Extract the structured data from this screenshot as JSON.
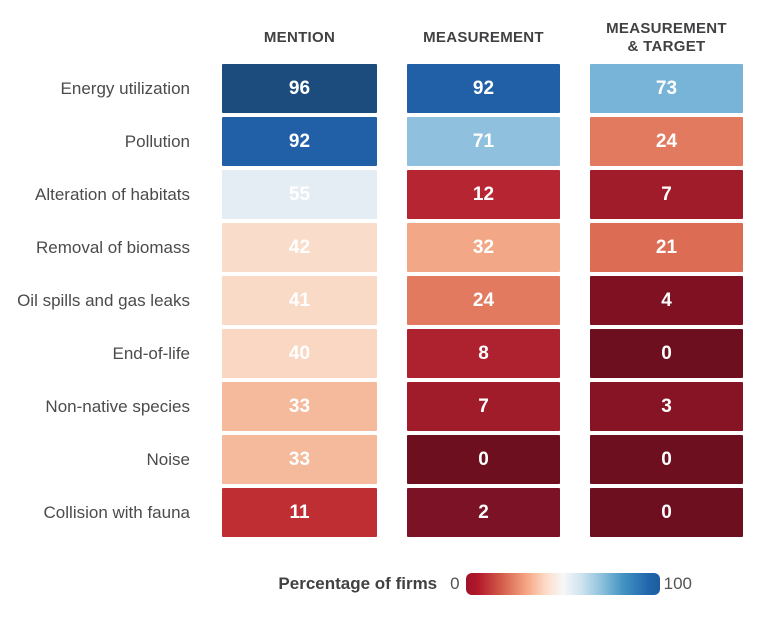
{
  "chart_data": {
    "type": "heatmap",
    "title": "",
    "columns": [
      "MENTION",
      "MEASUREMENT",
      "MEASUREMENT\n& TARGET"
    ],
    "rows": [
      {
        "label": "Energy utilization",
        "values": [
          96,
          92,
          73
        ],
        "colors": [
          "#1b4c7d",
          "#2160a6",
          "#77b4d8"
        ]
      },
      {
        "label": "Pollution",
        "values": [
          92,
          71,
          24
        ],
        "colors": [
          "#2160a6",
          "#8fc1de",
          "#e27a5f"
        ]
      },
      {
        "label": "Alteration of habitats",
        "values": [
          55,
          12,
          7
        ],
        "colors": [
          "#e4edf3",
          "#b62632",
          "#a01c2b"
        ]
      },
      {
        "label": "Removal of biomass",
        "values": [
          42,
          32,
          21
        ],
        "colors": [
          "#fadccb",
          "#f2a887",
          "#dc6c53"
        ]
      },
      {
        "label": "Oil spills and gas leaks",
        "values": [
          41,
          24,
          4
        ],
        "colors": [
          "#f9dac7",
          "#e27a5f",
          "#7f1122"
        ]
      },
      {
        "label": "End-of-life",
        "values": [
          40,
          8,
          0
        ],
        "colors": [
          "#fad7c2",
          "#ae212f",
          "#6e0f20"
        ]
      },
      {
        "label": "Non-native species",
        "values": [
          33,
          7,
          3
        ],
        "colors": [
          "#f5b99b",
          "#a01c2b",
          "#871425"
        ]
      },
      {
        "label": "Noise",
        "values": [
          33,
          0,
          0
        ],
        "colors": [
          "#f5b99b",
          "#6e0f20",
          "#6e0f20"
        ]
      },
      {
        "label": "Collision with fauna",
        "values": [
          11,
          2,
          0
        ],
        "colors": [
          "#bf2e33",
          "#7c1226",
          "#6e0f20"
        ]
      }
    ],
    "value_text_color": "#ffffff",
    "legend": {
      "label": "Percentage of firms",
      "min": "0",
      "max": "100",
      "colormap": "red-white-blue",
      "gradient_ends": [
        "#9e1127",
        "#1d5c9e"
      ]
    },
    "xlabel": "",
    "ylabel": "",
    "value_range": [
      0,
      100
    ]
  }
}
